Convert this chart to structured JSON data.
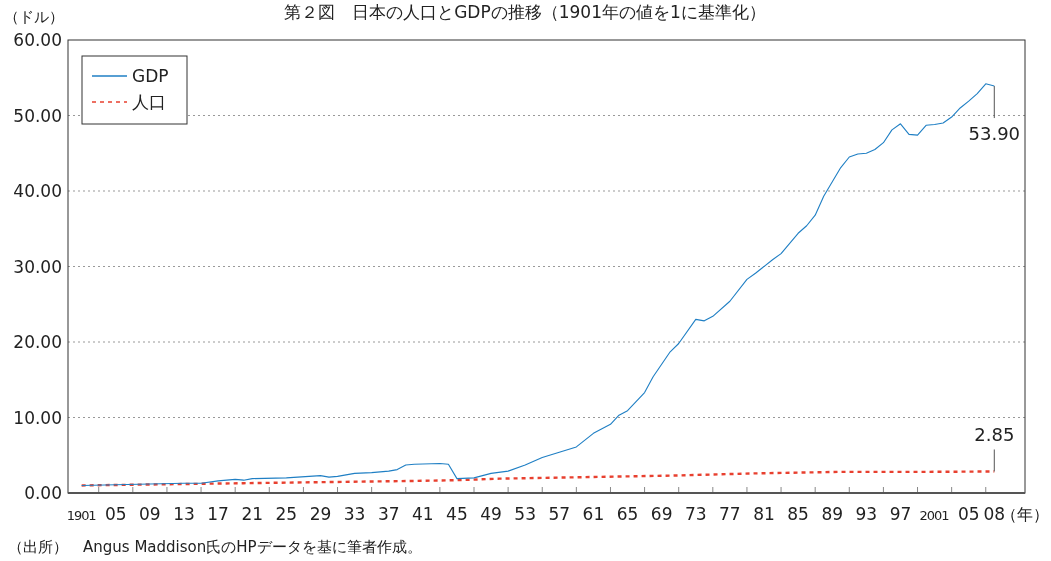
{
  "chart_data": {
    "type": "line",
    "title": "第２図　日本の人口とGDPの推移（1901年の値を1に基準化）",
    "ylabel": "（ドル）",
    "xlabel": "（年）",
    "annotations": [
      {
        "text": "53.90",
        "x": 2008,
        "y": 53.9
      },
      {
        "text": "2.85",
        "x": 2008,
        "y": 2.85
      },
      "（出所）　Angus Maddison氏のHPデータを基に筆者作成。"
    ],
    "series": [
      {
        "name": "GDP",
        "color": "#1f7fc4",
        "line_style": "solid",
        "x": [
          1901,
          1905,
          1909,
          1913,
          1915,
          1917,
          1919,
          1920,
          1921,
          1925,
          1929,
          1930,
          1931,
          1933,
          1935,
          1937,
          1938,
          1939,
          1940,
          1943,
          1944,
          1945,
          1947,
          1949,
          1951,
          1953,
          1955,
          1957,
          1959,
          1961,
          1963,
          1964,
          1965,
          1967,
          1968,
          1970,
          1971,
          1973,
          1974,
          1975,
          1977,
          1979,
          1980,
          1982,
          1983,
          1985,
          1986,
          1987,
          1988,
          1990,
          1991,
          1992,
          1993,
          1994,
          1995,
          1996,
          1997,
          1998,
          1999,
          2000,
          2001,
          2002,
          2003,
          2004,
          2005,
          2006,
          2007,
          2008
        ],
        "values": [
          1.0,
          1.1,
          1.2,
          1.3,
          1.3,
          1.6,
          1.8,
          1.7,
          1.9,
          2.0,
          2.3,
          2.1,
          2.2,
          2.6,
          2.7,
          2.9,
          3.1,
          3.7,
          3.8,
          3.9,
          3.8,
          1.9,
          2.0,
          2.6,
          2.9,
          3.7,
          4.7,
          5.4,
          6.1,
          7.9,
          9.1,
          10.3,
          10.9,
          13.3,
          15.4,
          18.7,
          19.8,
          23.0,
          22.8,
          23.4,
          25.4,
          28.3,
          29.1,
          30.9,
          31.7,
          34.4,
          35.4,
          36.8,
          39.3,
          43.1,
          44.5,
          44.9,
          45.0,
          45.5,
          46.4,
          48.1,
          48.9,
          47.5,
          47.4,
          48.7,
          48.8,
          49.0,
          49.8,
          51.0,
          51.9,
          52.9,
          54.2,
          53.9
        ]
      },
      {
        "name": "人口",
        "color": "#e8402f",
        "line_style": "dashed",
        "x": [
          1901,
          1920,
          1940,
          1945,
          1950,
          1960,
          1970,
          1980,
          1990,
          2000,
          2008
        ],
        "values": [
          1.0,
          1.3,
          1.6,
          1.7,
          1.9,
          2.1,
          2.3,
          2.6,
          2.8,
          2.8,
          2.85
        ]
      }
    ],
    "xlim": [
      1899.4,
      2011.6
    ],
    "ylim": [
      0,
      60
    ],
    "xticks": [
      {
        "value": 1901,
        "label": "1901"
      },
      {
        "value": 1903,
        "label": null
      },
      {
        "value": 1905,
        "label": "05"
      },
      {
        "value": 1907,
        "label": null
      },
      {
        "value": 1909,
        "label": "09"
      },
      {
        "value": 1911,
        "label": null
      },
      {
        "value": 1913,
        "label": "13"
      },
      {
        "value": 1915,
        "label": null
      },
      {
        "value": 1917,
        "label": "17"
      },
      {
        "value": 1919,
        "label": null
      },
      {
        "value": 1921,
        "label": "21"
      },
      {
        "value": 1923,
        "label": null
      },
      {
        "value": 1925,
        "label": "25"
      },
      {
        "value": 1927,
        "label": null
      },
      {
        "value": 1929,
        "label": "29"
      },
      {
        "value": 1931,
        "label": null
      },
      {
        "value": 1933,
        "label": "33"
      },
      {
        "value": 1935,
        "label": null
      },
      {
        "value": 1937,
        "label": "37"
      },
      {
        "value": 1939,
        "label": null
      },
      {
        "value": 1941,
        "label": "41"
      },
      {
        "value": 1943,
        "label": null
      },
      {
        "value": 1945,
        "label": "45"
      },
      {
        "value": 1947,
        "label": null
      },
      {
        "value": 1949,
        "label": "49"
      },
      {
        "value": 1951,
        "label": null
      },
      {
        "value": 1953,
        "label": "53"
      },
      {
        "value": 1955,
        "label": null
      },
      {
        "value": 1957,
        "label": "57"
      },
      {
        "value": 1959,
        "label": null
      },
      {
        "value": 1961,
        "label": "61"
      },
      {
        "value": 1963,
        "label": null
      },
      {
        "value": 1965,
        "label": "65"
      },
      {
        "value": 1967,
        "label": null
      },
      {
        "value": 1969,
        "label": "69"
      },
      {
        "value": 1971,
        "label": null
      },
      {
        "value": 1973,
        "label": "73"
      },
      {
        "value": 1975,
        "label": null
      },
      {
        "value": 1977,
        "label": "77"
      },
      {
        "value": 1979,
        "label": null
      },
      {
        "value": 1981,
        "label": "81"
      },
      {
        "value": 1983,
        "label": null
      },
      {
        "value": 1985,
        "label": "85"
      },
      {
        "value": 1987,
        "label": null
      },
      {
        "value": 1989,
        "label": "89"
      },
      {
        "value": 1991,
        "label": null
      },
      {
        "value": 1993,
        "label": "93"
      },
      {
        "value": 1995,
        "label": null
      },
      {
        "value": 1997,
        "label": "97"
      },
      {
        "value": 1999,
        "label": null
      },
      {
        "value": 2001,
        "label": "2001"
      },
      {
        "value": 2003,
        "label": null
      },
      {
        "value": 2005,
        "label": "05"
      },
      {
        "value": 2007,
        "label": null
      },
      {
        "value": 2008,
        "label": "08"
      }
    ],
    "yticks": [
      {
        "value": 0,
        "label": "0.00"
      },
      {
        "value": 10,
        "label": "10.00"
      },
      {
        "value": 20,
        "label": "20.00"
      },
      {
        "value": 30,
        "label": "30.00"
      },
      {
        "value": 40,
        "label": "40.00"
      },
      {
        "value": 50,
        "label": "50.00"
      },
      {
        "value": 60,
        "label": "60.00"
      }
    ],
    "grid": "y",
    "legend": "top left"
  }
}
